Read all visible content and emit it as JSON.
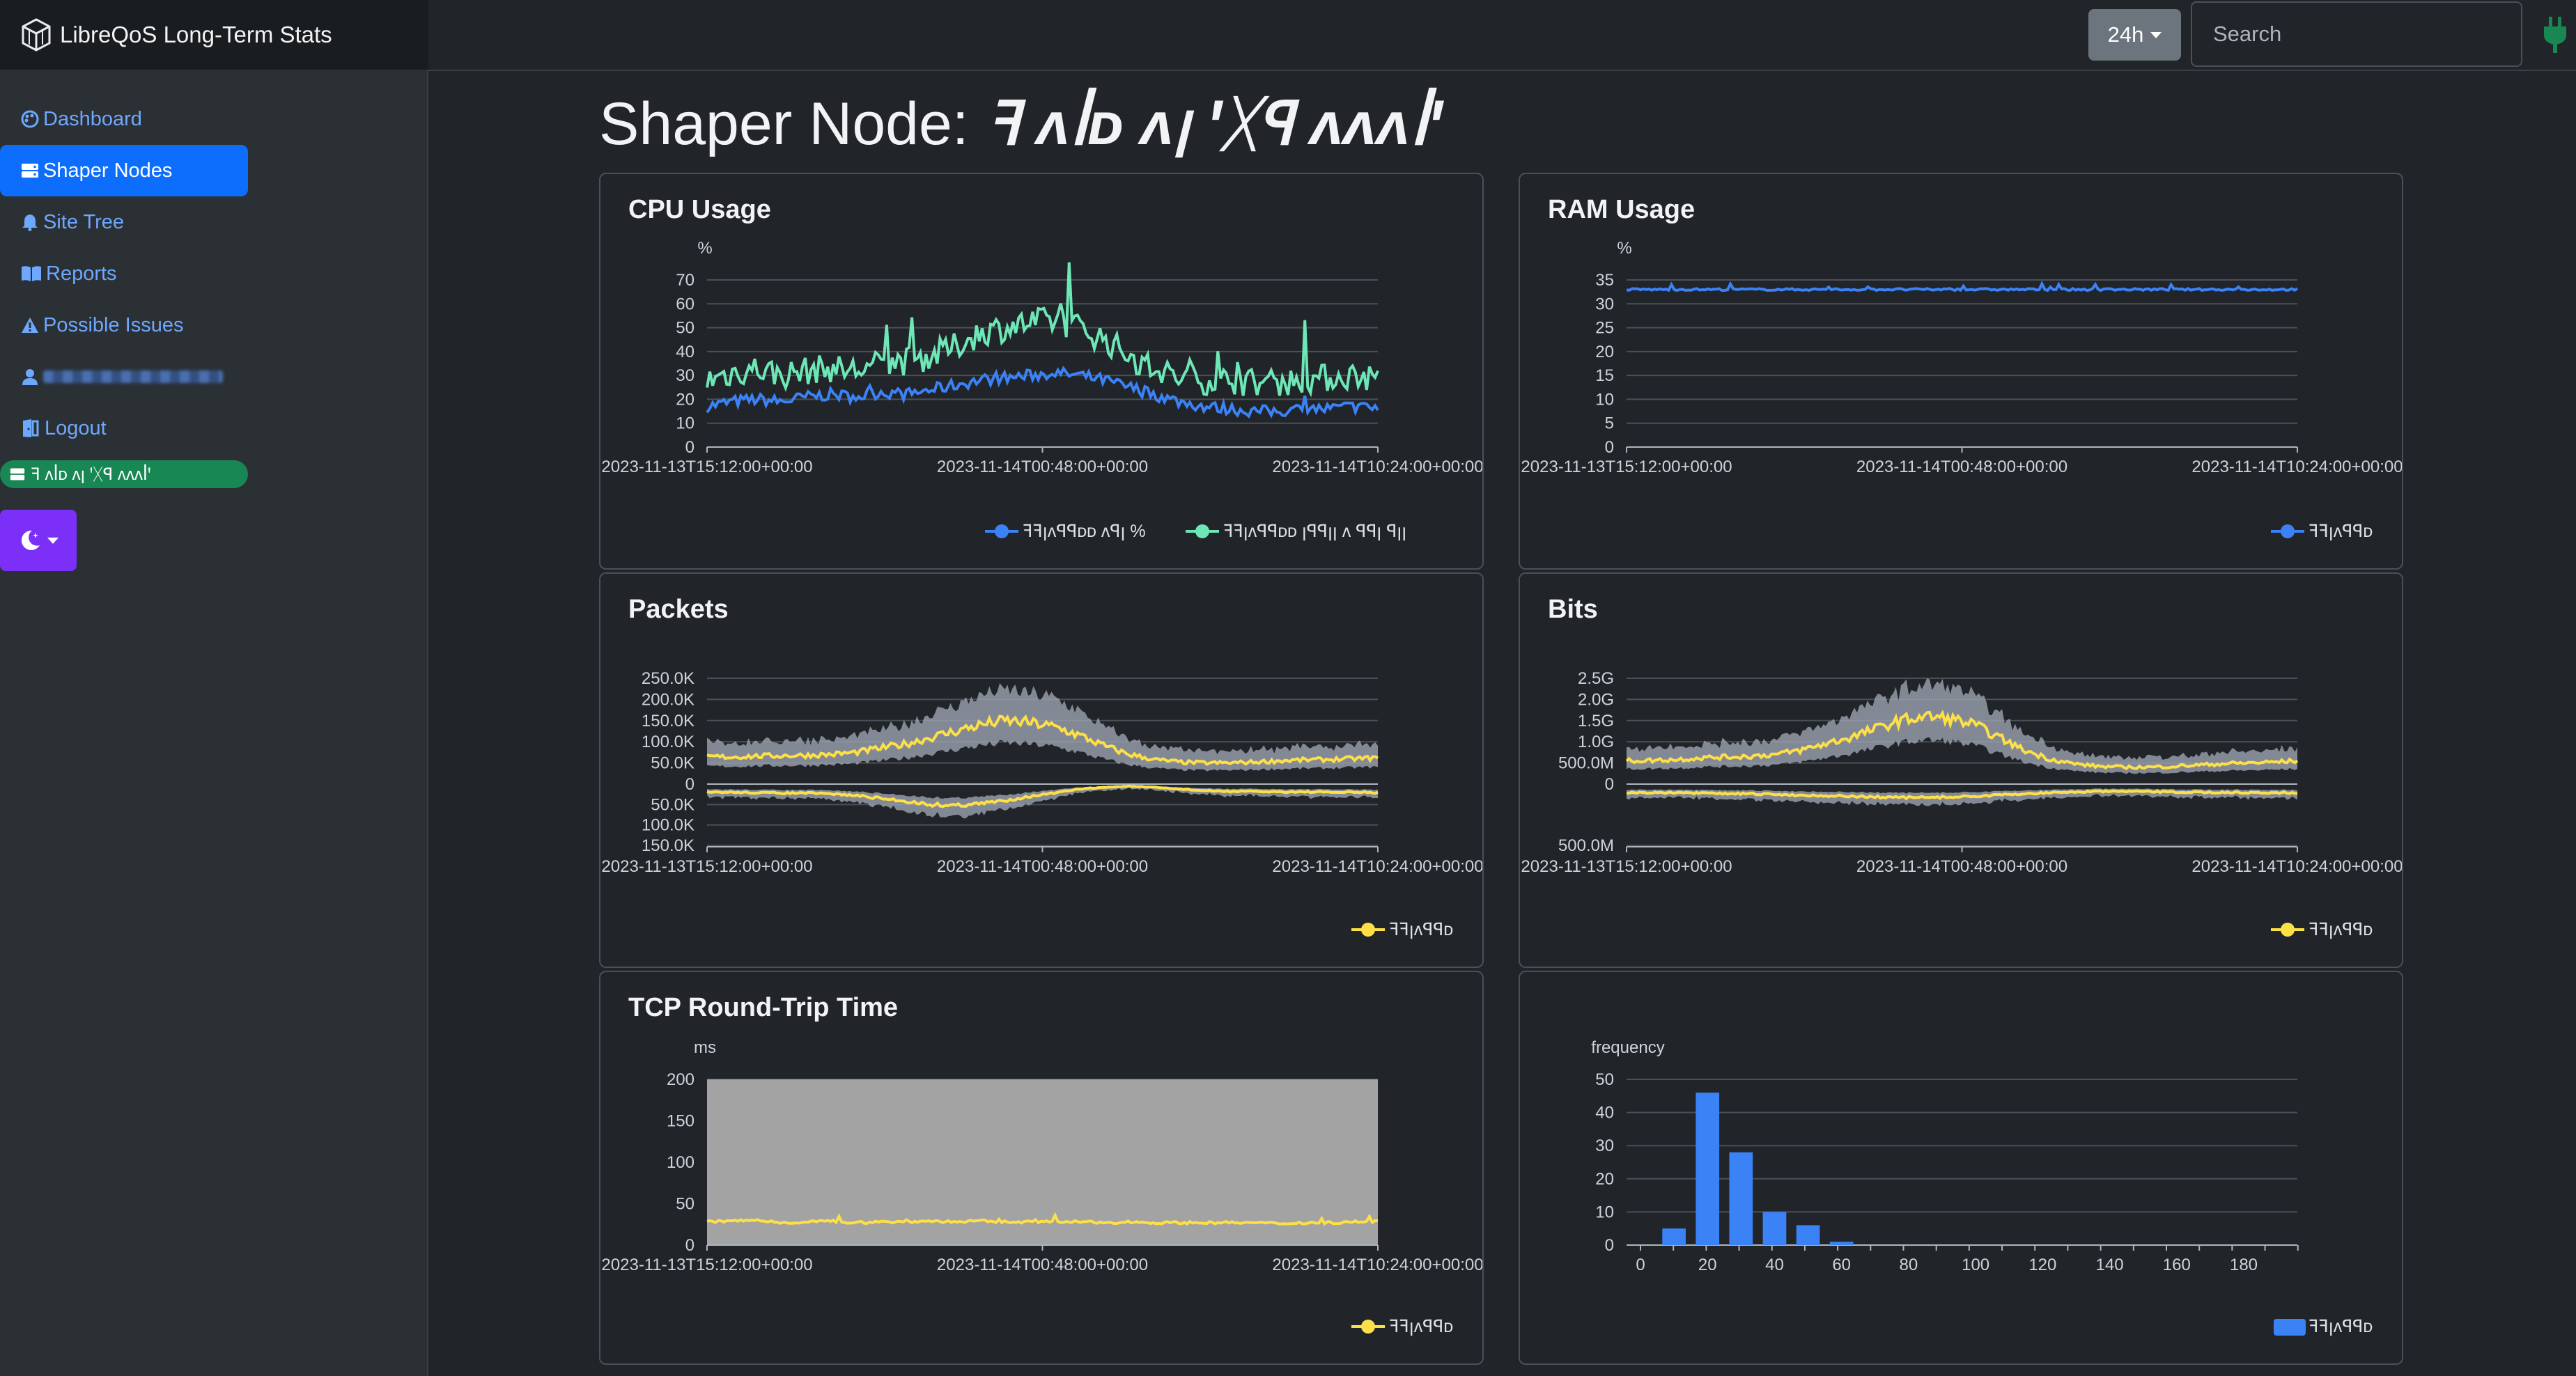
{
  "app": {
    "title": "LibreQoS Long-Term Stats"
  },
  "topbar": {
    "range_label": "24h",
    "search_placeholder": "Search"
  },
  "sidebar": {
    "items": [
      {
        "label": "Dashboard"
      },
      {
        "label": "Shaper Nodes"
      },
      {
        "label": "Site Tree"
      },
      {
        "label": "Reports"
      },
      {
        "label": "Possible Issues"
      },
      {
        "label": ""
      },
      {
        "label": "Logout"
      }
    ],
    "node_pill": "ꟻ ᴧꟾᴅ ᴧꞁ ꞌᚷꟼ ᴧᴧᴧꟾꞌ"
  },
  "page": {
    "title_prefix": "Shaper Node:",
    "node_name": "ꟻ ᴧꟾᴅ ᴧꞁ ꞌᚷꟼ ᴧᴧᴧꟾꞌ"
  },
  "colors": {
    "cpu_avg": "#3b82f6",
    "cpu_max": "#6ee7b7",
    "ram": "#3b82f6",
    "traffic": "#fde047",
    "band": "#9ca3af",
    "hist": "#3b82f6"
  },
  "x_ticks": [
    "2023-11-13T15:12:00+00:00",
    "2023-11-14T00:48:00+00:00",
    "2023-11-14T10:24:00+00:00"
  ],
  "chart_data": [
    {
      "id": "cpu",
      "type": "line",
      "title": "CPU Usage",
      "ylabel": "%",
      "ylim": [
        0,
        70
      ],
      "yticks": [
        "0",
        "10",
        "20",
        "30",
        "40",
        "50",
        "60",
        "70"
      ],
      "series": [
        {
          "name": "ꟻꟻꞁᴧꟼꟼᴅᴅ ᴧꟼꞁ",
          "unit": "%",
          "values": [
            17,
            19,
            20,
            19,
            21,
            22,
            21,
            23,
            22,
            24,
            26,
            28,
            29,
            30,
            31,
            30,
            28,
            25,
            22,
            19,
            17,
            16,
            15,
            15,
            16,
            16,
            17,
            16
          ]
        },
        {
          "name": "ꟻꟻꞁᴧꟼꟼᴅᴅ ꞁꟼꟼꞁꞁ ᴧ ꟼꟼꞁ ꟼꞁꞁ",
          "values": [
            28,
            31,
            33,
            30,
            32,
            33,
            32,
            35,
            36,
            38,
            42,
            48,
            50,
            52,
            53,
            50,
            45,
            38,
            32,
            29,
            28,
            28,
            27,
            27,
            28,
            29,
            30,
            29
          ]
        }
      ]
    },
    {
      "id": "ram",
      "type": "line",
      "title": "RAM Usage",
      "ylabel": "%",
      "ylim": [
        0,
        35
      ],
      "yticks": [
        "0",
        "5",
        "10",
        "15",
        "20",
        "25",
        "30",
        "35"
      ],
      "series": [
        {
          "name": "ꟻꟻꞁᴧꟼꟼᴅ",
          "values": [
            33,
            33,
            33,
            33,
            33,
            33,
            33,
            33,
            33,
            33,
            33,
            33,
            33,
            33,
            33,
            33,
            33,
            33,
            33,
            33,
            33,
            33,
            33,
            33,
            33,
            33,
            33,
            33
          ]
        }
      ]
    },
    {
      "id": "packets",
      "type": "area",
      "title": "Packets",
      "yticks_up": [
        "0",
        "50.0K",
        "100.0K",
        "150.0K",
        "200.0K",
        "250.0K"
      ],
      "yticks_down": [
        "50.0K",
        "100.0K",
        "150.0K"
      ],
      "ylim_up": [
        0,
        250000
      ],
      "ylim_down": [
        0,
        150000
      ],
      "series": [
        {
          "name": "ꟻꟻꞁᴧꟼꟼᴅ",
          "direction": "down",
          "values": [
            65000,
            64000,
            66000,
            67000,
            68000,
            70000,
            75000,
            85000,
            95000,
            110000,
            125000,
            140000,
            150000,
            145000,
            135000,
            115000,
            90000,
            70000,
            58000,
            52000,
            50000,
            50000,
            52000,
            55000,
            57000,
            58000,
            60000,
            62000
          ]
        },
        {
          "name": "ꟻꟻꞁᴧꟼꟼᴅ",
          "direction": "up",
          "values": [
            20000,
            20000,
            21000,
            22000,
            22000,
            24000,
            28000,
            35000,
            42000,
            50000,
            52000,
            48000,
            40000,
            30000,
            22000,
            12000,
            8000,
            5000,
            8000,
            12000,
            16000,
            18000,
            18000,
            19000,
            19000,
            20000,
            20000,
            21000
          ]
        }
      ]
    },
    {
      "id": "bits",
      "type": "area",
      "title": "Bits",
      "yticks_up": [
        "0",
        "500.0M",
        "1.0G",
        "1.5G",
        "2.0G",
        "2.5G"
      ],
      "yticks_down": [
        "500.0M"
      ],
      "ylim_up": [
        0,
        2500000000
      ],
      "ylim_down": [
        0,
        500000000
      ],
      "series": [
        {
          "name": "ꟻꟻꞁᴧꟼꟼᴅ",
          "direction": "down",
          "values": [
            550000000,
            560000000,
            580000000,
            620000000,
            640000000,
            660000000,
            700000000,
            800000000,
            950000000,
            1100000000,
            1300000000,
            1500000000,
            1600000000,
            1550000000,
            1400000000,
            1100000000,
            800000000,
            600000000,
            480000000,
            420000000,
            400000000,
            400000000,
            420000000,
            450000000,
            480000000,
            500000000,
            520000000,
            550000000
          ]
        },
        {
          "name": "ꟻꟻꞁᴧꟼꟼᴅ",
          "direction": "up",
          "values": [
            70000000,
            70000000,
            72000000,
            75000000,
            78000000,
            80000000,
            85000000,
            90000000,
            95000000,
            100000000,
            105000000,
            110000000,
            110000000,
            105000000,
            100000000,
            90000000,
            80000000,
            70000000,
            65000000,
            60000000,
            60000000,
            62000000,
            65000000,
            67000000,
            68000000,
            70000000,
            70000000,
            72000000
          ]
        }
      ]
    },
    {
      "id": "rtt",
      "type": "line",
      "title": "TCP Round-Trip Time",
      "ylabel": "ms",
      "ylim": [
        0,
        200
      ],
      "yticks": [
        "0",
        "50",
        "100",
        "150",
        "200"
      ],
      "series": [
        {
          "name": "ꟻꟻꞁᴧꟼꟼᴅ",
          "values": [
            28,
            29,
            30,
            27,
            28,
            29,
            27,
            28,
            28,
            29,
            28,
            29,
            28,
            28,
            28,
            28,
            27,
            28,
            27,
            27,
            27,
            27,
            27,
            26,
            27,
            27,
            28,
            29
          ]
        }
      ]
    },
    {
      "id": "hist",
      "type": "bar",
      "title": "",
      "ylabel": "frequency",
      "ylim": [
        0,
        50
      ],
      "yticks": [
        "0",
        "10",
        "20",
        "30",
        "40",
        "50"
      ],
      "xticks": [
        "0",
        "20",
        "40",
        "60",
        "80",
        "100",
        "120",
        "140",
        "160",
        "180"
      ],
      "categories": [
        "10",
        "20",
        "30",
        "40",
        "50",
        "60"
      ],
      "values": [
        5,
        46,
        28,
        10,
        6,
        1
      ],
      "series_name": "ꟻꟻꞁᴧꟼꟼᴅ"
    }
  ]
}
